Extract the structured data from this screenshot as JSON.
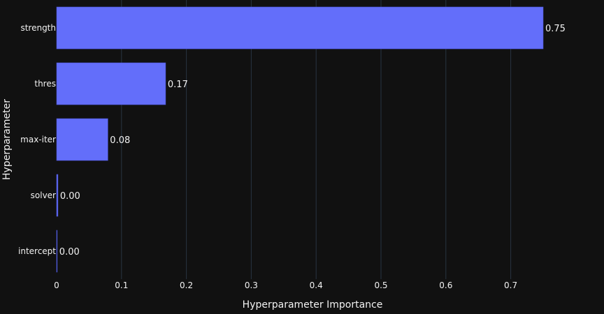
{
  "chart_data": {
    "type": "bar",
    "orientation": "horizontal",
    "categories": [
      "strength",
      "thres",
      "max-iter",
      "solver",
      "intercept"
    ],
    "values": [
      0.75,
      0.168,
      0.079,
      0.002,
      0.0005
    ],
    "data_labels": [
      "0.75",
      "0.17",
      "0.08",
      "0.00",
      "0.00"
    ],
    "xlabel": "Hyperparameter Importance",
    "ylabel": "Hyperparameter",
    "xlim": [
      0,
      0.75
    ],
    "xticks": [
      0,
      0.1,
      0.2,
      0.3,
      0.4,
      0.5,
      0.6,
      0.7
    ],
    "xtick_labels": [
      "0",
      "0.1",
      "0.2",
      "0.3",
      "0.4",
      "0.5",
      "0.6",
      "0.7"
    ],
    "grid": true,
    "colors": {
      "background": "#111111",
      "bar": "#636efa",
      "grid": "#283442",
      "text": "#f2f2f2"
    }
  }
}
